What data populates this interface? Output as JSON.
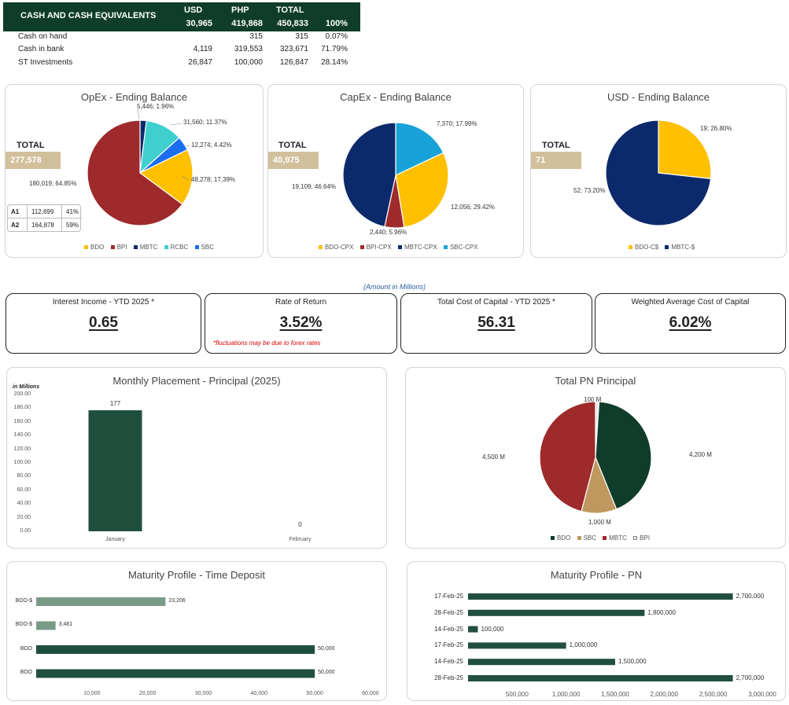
{
  "cash": {
    "title": "CASH AND CASH EQUIVALENTS",
    "col_usd": "USD",
    "col_php": "PHP",
    "col_total": "TOTAL",
    "usd_total": "30,965",
    "php_total": "419,868",
    "grand_total": "450,833",
    "pct_total": "100%",
    "rows": [
      {
        "label": "Cash on hand",
        "usd": "",
        "php": "315",
        "total": "315",
        "pct": "0.07%"
      },
      {
        "label": "Cash in bank",
        "usd": "4,119",
        "php": "319,553",
        "total": "323,671",
        "pct": "71.79%"
      },
      {
        "label": "ST Investments",
        "usd": "26,847",
        "php": "100,000",
        "total": "126,847",
        "pct": "28.14%"
      }
    ]
  },
  "opex": {
    "title": "OpEx - Ending Balance",
    "total_label": "TOTAL",
    "total_value": "277,578",
    "labels": [
      "5,446; 1.96%",
      "31,560; 11.37%",
      "12,274; 4.42%",
      "48,278; 17.39%",
      "180,019; 64.85%"
    ],
    "a_rows": [
      {
        "name": "A1",
        "value": "112,699",
        "pct": "41%"
      },
      {
        "name": "A2",
        "value": "164,878",
        "pct": "59%"
      }
    ],
    "legend": [
      "BDO",
      "BPI",
      "MBTC",
      "RCBC",
      "SBC"
    ]
  },
  "capex": {
    "title": "CapEx - Ending Balance",
    "total_label": "TOTAL",
    "total_value": "40,975",
    "labels": [
      "7,370; 17.99%",
      "12,056; 29.42%",
      "2,440; 5.96%",
      "19,109; 46.64%"
    ],
    "legend": [
      "BDO-CPX",
      "BPI-CPX",
      "MBTC-CPX",
      "SBC-CPX"
    ]
  },
  "usd": {
    "title": "USD - Ending Balance",
    "total_label": "TOTAL",
    "total_value": "71",
    "labels": [
      "19; 26.80%",
      "52; 73.20%"
    ],
    "legend": [
      "BDO-C$",
      "MBTC-$"
    ]
  },
  "amount_note": "(Amount in Millions)",
  "kpis": [
    {
      "title": "Interest Income - YTD 2025 *",
      "value": "0.65",
      "note": ""
    },
    {
      "title": "Rate of Return",
      "value": "3.52%",
      "note": "*fluctuations may be due to forex rates"
    },
    {
      "title": "Total Cost of Capital - YTD 2025 *",
      "value": "56.31",
      "note": ""
    },
    {
      "title": "Weighted Average Cost of Capital",
      "value": "6.02%",
      "note": ""
    }
  ],
  "colors": {
    "dark_green": "#0f3d2a",
    "bar_green": "#214f3e",
    "light_green": "#7a9a88",
    "tan": "#d2bf9c",
    "bdo_yellow": "#ffc000",
    "bpi_red": "#9e2a2b",
    "mbtc_navy": "#0c2a6b",
    "rcbc_teal": "#3fcfcf",
    "sbc_blue": "#1b6ef0",
    "sbc_cpx": "#17a2d8"
  },
  "chart_data": [
    {
      "type": "pie",
      "title": "OpEx - Ending Balance",
      "categories": [
        "BDO",
        "BPI",
        "MBTC",
        "RCBC",
        "SBC"
      ],
      "values": [
        48278,
        180019,
        5446,
        31560,
        12274
      ]
    },
    {
      "type": "pie",
      "title": "CapEx - Ending Balance",
      "categories": [
        "BDO-CPX",
        "BPI-CPX",
        "MBTC-CPX",
        "SBC-CPX"
      ],
      "values": [
        12056,
        2440,
        19109,
        7370
      ]
    },
    {
      "type": "pie",
      "title": "USD - Ending Balance",
      "categories": [
        "BDO-C$",
        "MBTC-$"
      ],
      "values": [
        19,
        52
      ]
    },
    {
      "type": "bar",
      "title": "Monthly Placement - Principal (2025)",
      "ylabel": "in Millions",
      "categories": [
        "January",
        "February"
      ],
      "values": [
        177,
        0
      ],
      "ylim": [
        0,
        200
      ],
      "yticks": [
        "0.00",
        "20.00",
        "40.00",
        "60.00",
        "80.00",
        "100.00",
        "120.00",
        "140.00",
        "160.00",
        "180.00",
        "200.00"
      ]
    },
    {
      "type": "pie",
      "title": "Total PN Principal",
      "categories": [
        "BDO",
        "SBC",
        "MBTC",
        "BPI"
      ],
      "values": [
        4200,
        1000,
        4500,
        100
      ],
      "labels": [
        "4,200 M",
        "1,000 M",
        "4,500 M",
        "100 M"
      ]
    },
    {
      "type": "bar",
      "orientation": "horizontal",
      "title": "Maturity Profile - Time Deposit",
      "categories": [
        "BDO-$",
        "BDO-$",
        "BDO",
        "BDO"
      ],
      "values": [
        23206,
        3481,
        50000,
        50000
      ],
      "labels": [
        "23,206",
        "3,481",
        "50,000",
        "50,000"
      ],
      "xlim": [
        0,
        60000
      ],
      "xticks": [
        "10,000",
        "20,000",
        "30,000",
        "40,000",
        "50,000",
        "60,000"
      ]
    },
    {
      "type": "bar",
      "orientation": "horizontal",
      "title": "Maturity Profile - PN",
      "categories": [
        "17-Feb-25",
        "28-Feb-25",
        "14-Feb-25",
        "17-Feb-25",
        "14-Feb-25",
        "28-Feb-25"
      ],
      "values": [
        2700000,
        1800000,
        100000,
        1000000,
        1500000,
        2700000
      ],
      "labels": [
        "2,700,000",
        "1,800,000",
        "100,000",
        "1,000,000",
        "1,500,000",
        "2,700,000"
      ],
      "xlim": [
        0,
        3000000
      ],
      "xticks": [
        "500,000",
        "1,000,000",
        "1,500,000",
        "2,000,000",
        "2,500,000",
        "3,000,000"
      ]
    }
  ]
}
